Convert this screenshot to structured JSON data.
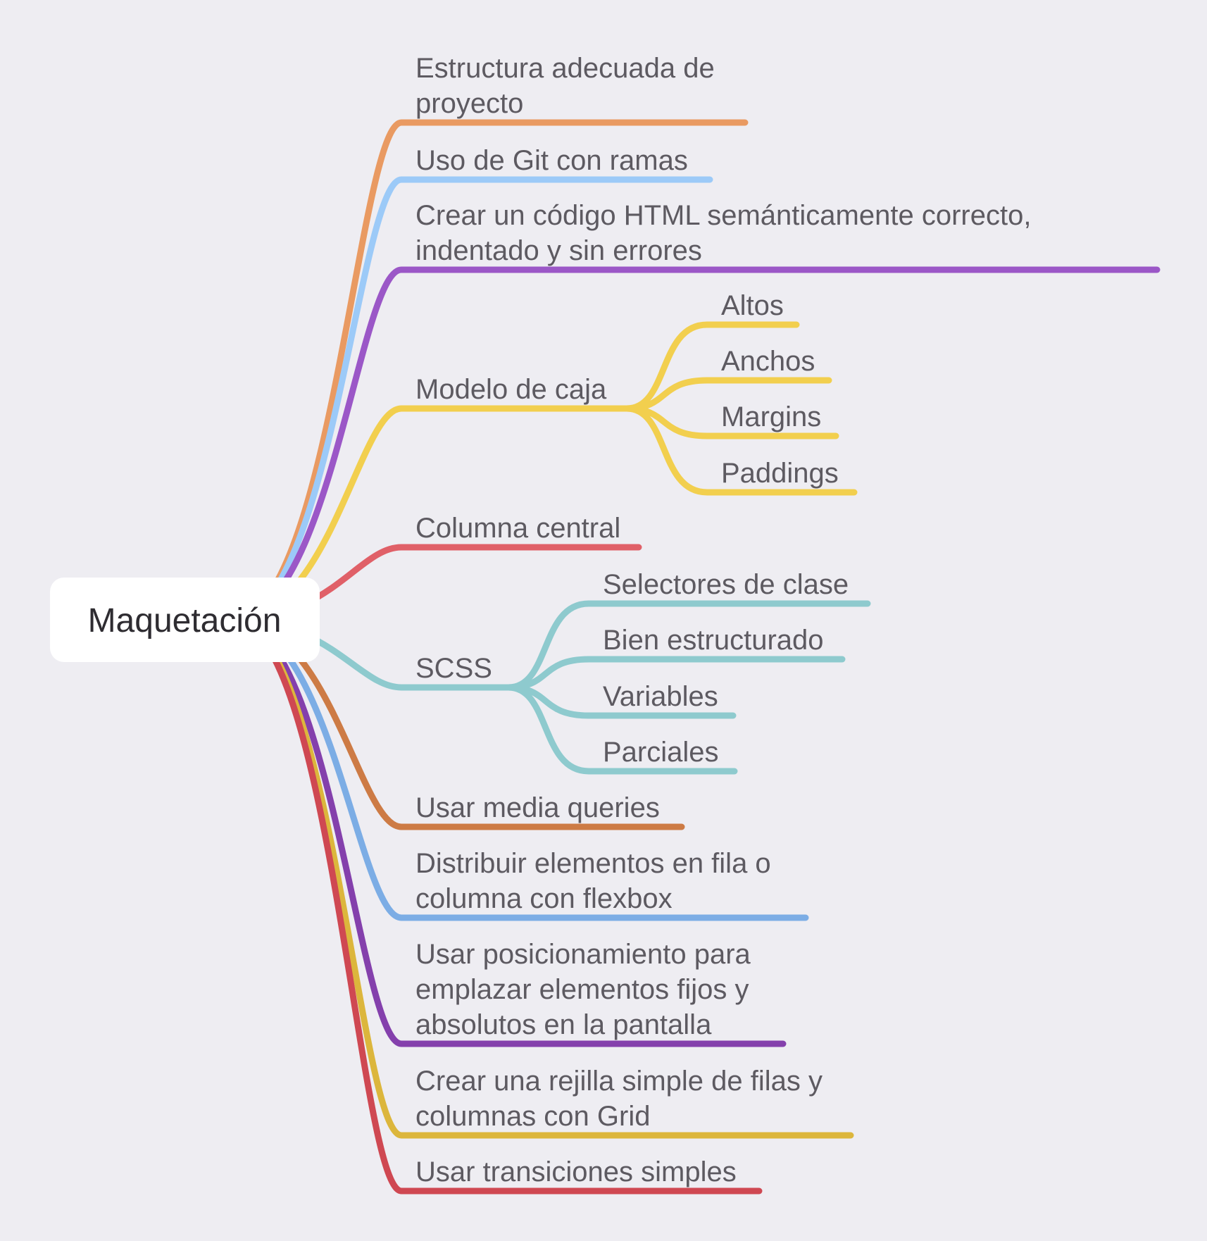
{
  "root": {
    "label": "Maquetación"
  },
  "branches": [
    {
      "id": "estructura",
      "lines": [
        "Estructura adecuada de",
        "proyecto"
      ],
      "color": "#e99a62",
      "children": []
    },
    {
      "id": "git",
      "lines": [
        "Uso de Git con ramas"
      ],
      "color": "#9ccaf8",
      "children": []
    },
    {
      "id": "html",
      "lines": [
        "Crear un código HTML semánticamente correcto,",
        "indentado y sin errores"
      ],
      "color": "#9b57c7",
      "children": []
    },
    {
      "id": "modelo-caja",
      "lines": [
        "Modelo de caja"
      ],
      "color": "#f2cf4e",
      "children": [
        {
          "id": "altos",
          "label": "Altos"
        },
        {
          "id": "anchos",
          "label": "Anchos"
        },
        {
          "id": "margins",
          "label": "Margins"
        },
        {
          "id": "paddings",
          "label": "Paddings"
        }
      ]
    },
    {
      "id": "columna-central",
      "lines": [
        "Columna central"
      ],
      "color": "#e06068",
      "children": []
    },
    {
      "id": "scss",
      "lines": [
        "SCSS"
      ],
      "color": "#8ecace",
      "children": [
        {
          "id": "selectores",
          "label": "Selectores de clase"
        },
        {
          "id": "bien-estructurado",
          "label": "Bien estructurado"
        },
        {
          "id": "variables",
          "label": "Variables"
        },
        {
          "id": "parciales",
          "label": "Parciales"
        }
      ]
    },
    {
      "id": "media-queries",
      "lines": [
        "Usar media queries"
      ],
      "color": "#cd7b45",
      "children": []
    },
    {
      "id": "flexbox",
      "lines": [
        "Distribuir elementos en fila o",
        "columna con flexbox"
      ],
      "color": "#7cade5",
      "children": []
    },
    {
      "id": "posicionamiento",
      "lines": [
        "Usar posicionamiento para",
        "emplazar elementos fijos y",
        "absolutos en la pantalla"
      ],
      "color": "#8440ac",
      "children": []
    },
    {
      "id": "grid",
      "lines": [
        "Crear una rejilla simple de filas y",
        "columnas con Grid"
      ],
      "color": "#dcb63c",
      "children": []
    },
    {
      "id": "transiciones",
      "lines": [
        "Usar transiciones simples"
      ],
      "color": "#cf4852",
      "children": []
    }
  ]
}
